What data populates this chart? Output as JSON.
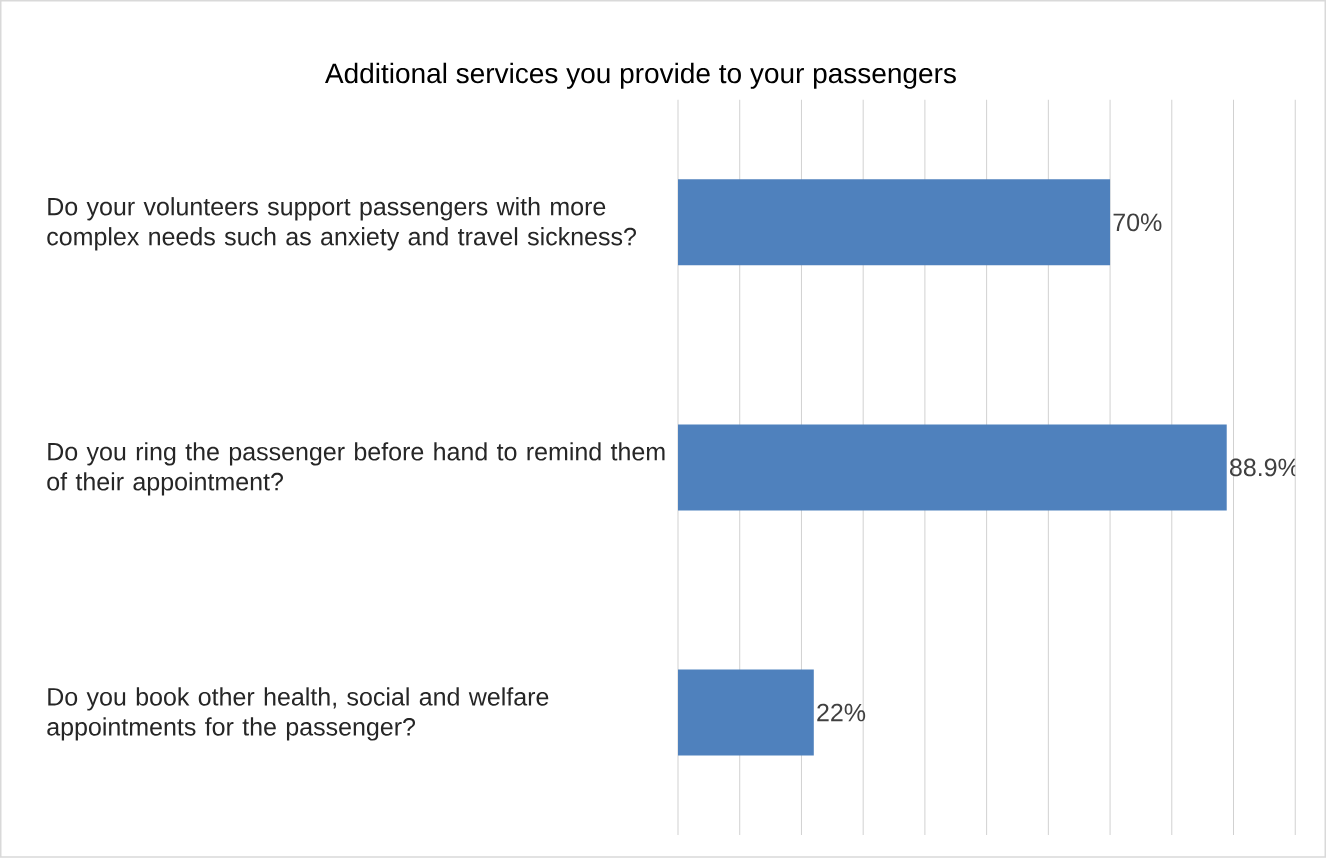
{
  "chart_data": {
    "type": "bar",
    "orientation": "horizontal",
    "title": "Additional services you provide to your passengers",
    "categories": [
      "Do your volunteers support passengers with more complex needs such as anxiety and travel sickness?",
      "Do you ring the passenger before hand to remind them of their appointment?",
      "Do you book other health, social and welfare appointments for the passenger?"
    ],
    "values": [
      70,
      88.9,
      22
    ],
    "value_labels": [
      "70%",
      "88.9%",
      "22%"
    ],
    "color": "#4f81bd",
    "xlim": [
      0,
      100
    ],
    "xticks": [
      {
        "value": 0,
        "label": null
      },
      {
        "value": 10,
        "label": null
      },
      {
        "value": 20,
        "label": null
      },
      {
        "value": 30,
        "label": null
      },
      {
        "value": 40,
        "label": null
      },
      {
        "value": 50,
        "label": null
      },
      {
        "value": 60,
        "label": null
      },
      {
        "value": 70,
        "label": null
      },
      {
        "value": 80,
        "label": null
      },
      {
        "value": 90,
        "label": null
      },
      {
        "value": 100,
        "label": null
      }
    ],
    "grid": "x",
    "tick_labels": "y"
  }
}
